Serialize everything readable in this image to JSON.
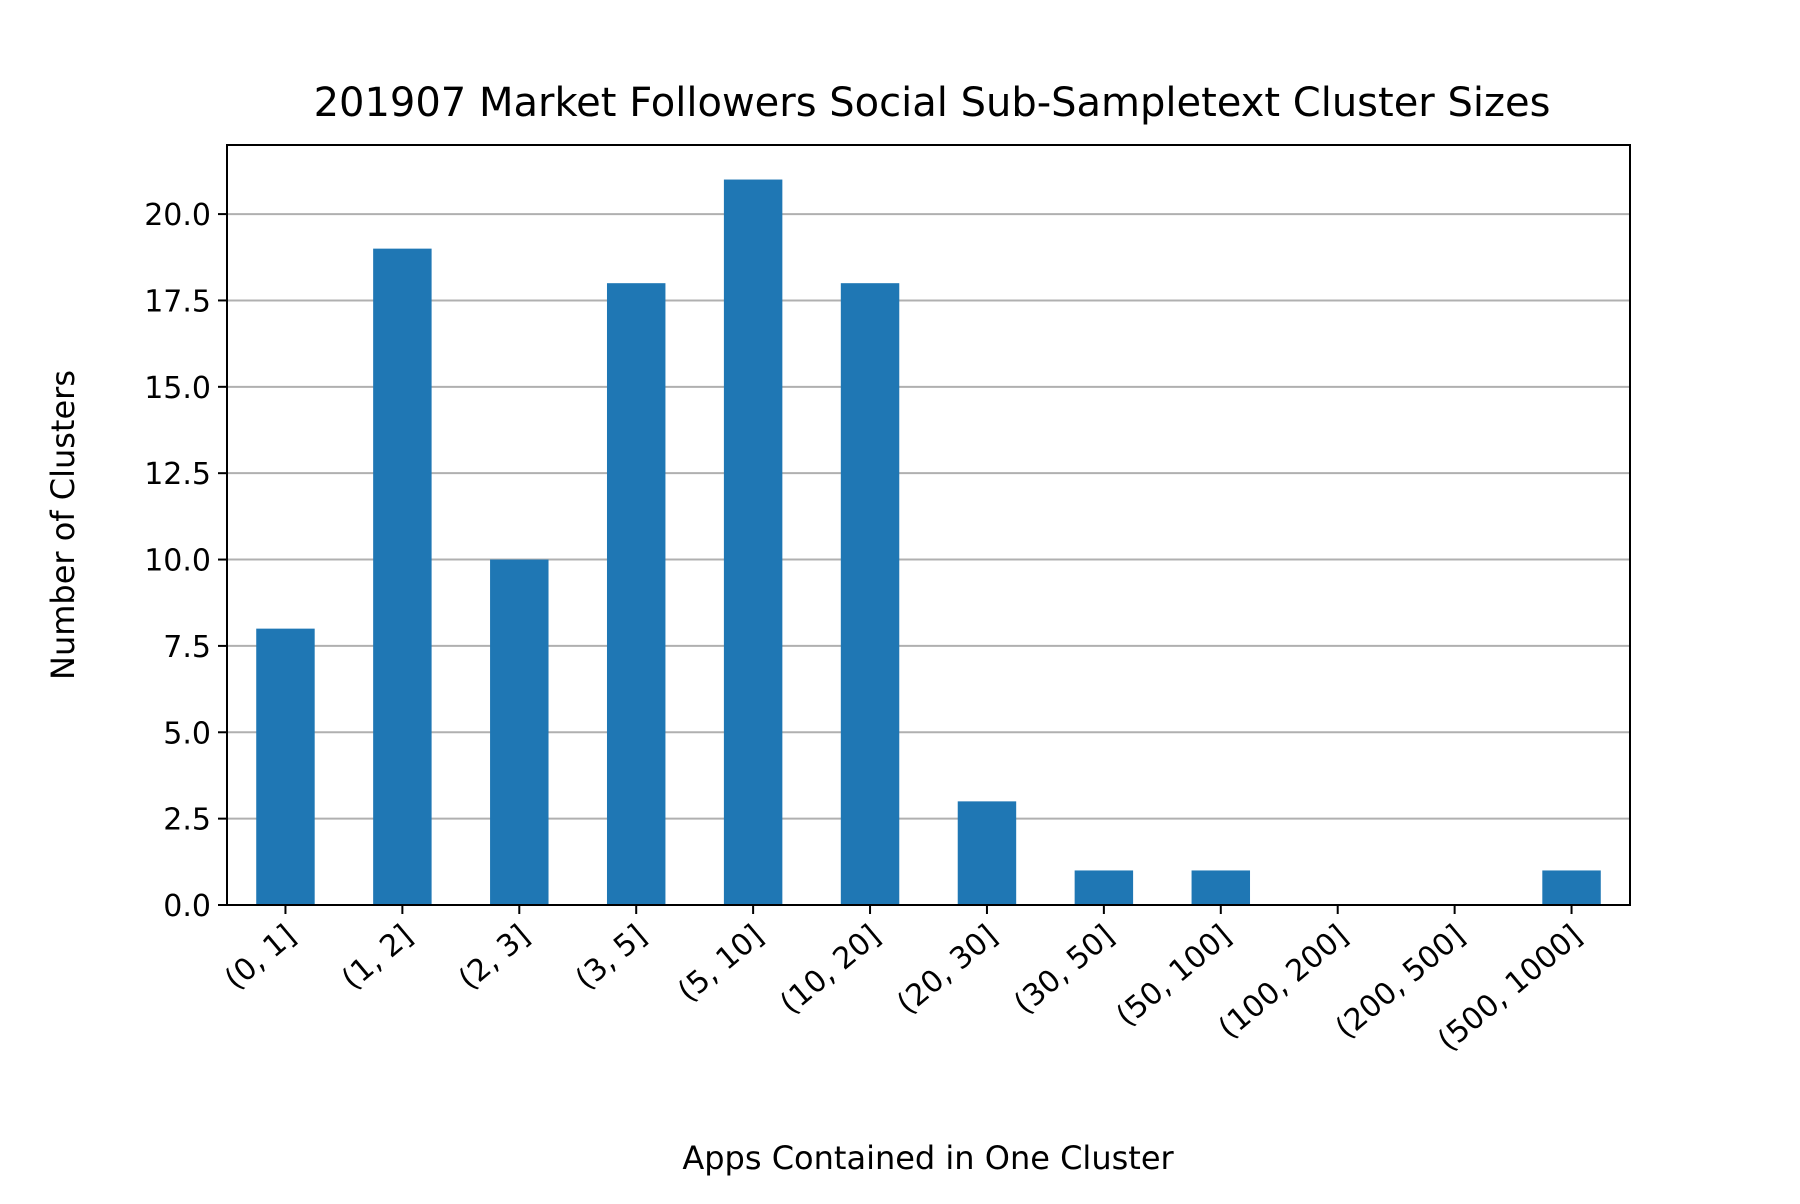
{
  "chart_data": {
    "type": "bar",
    "title": "201907 Market Followers Social Sub-Sampletext Cluster Sizes",
    "xlabel": "Apps Contained in One Cluster",
    "ylabel": "Number of Clusters",
    "categories": [
      "(0, 1]",
      "(1, 2]",
      "(2, 3]",
      "(3, 5]",
      "(5, 10]",
      "(10, 20]",
      "(20, 30]",
      "(30, 50]",
      "(50, 100]",
      "(100, 200]",
      "(200, 500]",
      "(500, 1000]"
    ],
    "values": [
      8,
      19,
      10,
      18,
      21,
      18,
      3,
      1,
      1,
      0,
      0,
      1
    ],
    "ylim": [
      0,
      22
    ],
    "yticks": [
      0,
      2.5,
      5,
      7.5,
      10,
      12.5,
      15,
      17.5,
      20
    ],
    "ytick_labels": [
      "0.0",
      "2.5",
      "5.0",
      "7.5",
      "10.0",
      "12.5",
      "15.0",
      "17.5",
      "20.0"
    ],
    "grid": "y-axis only",
    "bar_color": "#1f77b4",
    "grid_color": "#b0b0b0",
    "xtick_rotation": "45 degrees"
  }
}
